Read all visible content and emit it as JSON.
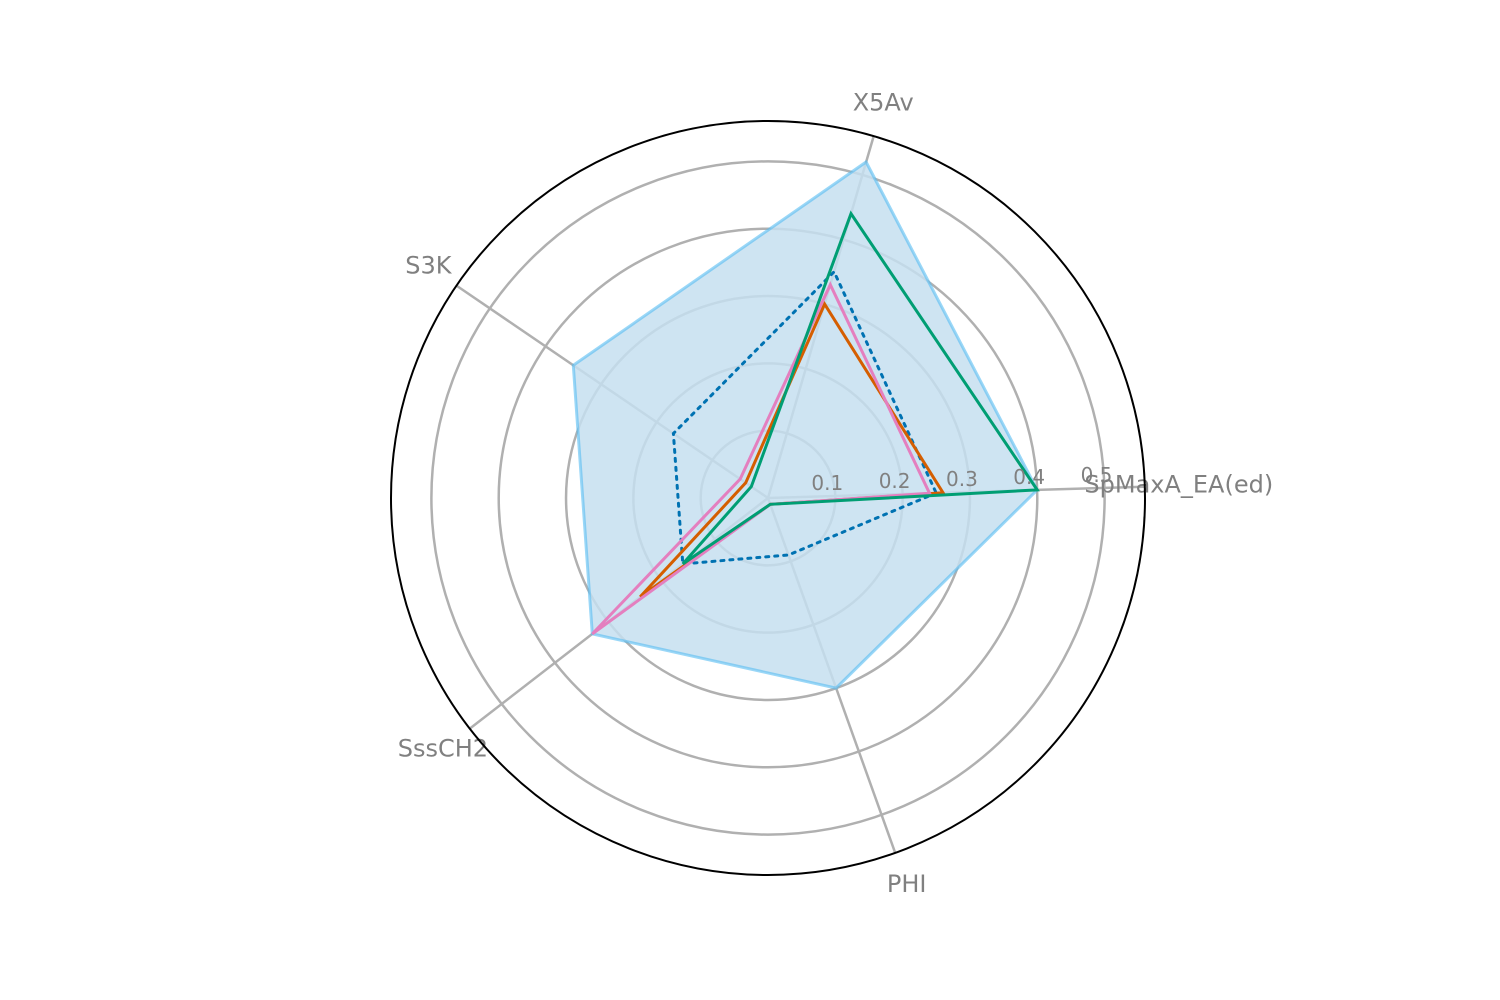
{
  "chart_data": {
    "type": "radar",
    "axes": [
      "SpMaxA_EA(ed)",
      "PHI",
      "SssCH2",
      "S3K",
      "X5Av"
    ],
    "rlim": [
      0,
      0.56
    ],
    "rticks": [
      0.1,
      0.2,
      0.3,
      0.4,
      0.5
    ],
    "rtick_labels": [
      "0.1",
      "0.2",
      "0.3",
      "0.4",
      "0.5"
    ],
    "grid": true,
    "series": [
      {
        "values": [
          0.4,
          0.3,
          0.33,
          0.35,
          0.52
        ],
        "color": "#56bdf2",
        "fill": "#c5dff0",
        "style": "filled"
      },
      {
        "values": [
          0.25,
          0.09,
          0.16,
          0.17,
          0.35
        ],
        "color": "#0072b2",
        "style": "dotted"
      },
      {
        "values": [
          0.26,
          0.01,
          0.24,
          0.04,
          0.3
        ],
        "color": "#d55e00",
        "style": "solid"
      },
      {
        "values": [
          0.24,
          0.01,
          0.33,
          0.05,
          0.33
        ],
        "color": "#e47fbf",
        "style": "solid"
      },
      {
        "values": [
          0.4,
          0.01,
          0.16,
          0.03,
          0.44
        ],
        "color": "#009e73",
        "style": "solid"
      }
    ]
  }
}
